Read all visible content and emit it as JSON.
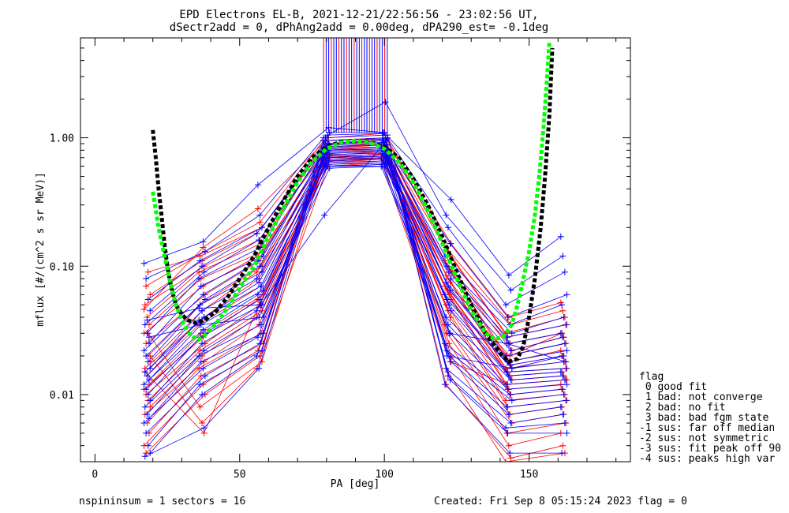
{
  "title": {
    "line1": "EPD Electrons EL-B, 2021-12-21/22:56:56 - 23:02:56 UT,",
    "line2": "dSectr2add = 0, dPhAng2add = 0.00deg, dPA290_est=  -0.1deg"
  },
  "footer": {
    "left": "nspininsum =  1  sectors = 16",
    "right": "Created: Fri Sep  8 05:15:24 2023   flag = 0"
  },
  "legend": {
    "title": "flag",
    "items": [
      " 0 good fit",
      " 1 bad: not converge",
      " 2 bad: no fit",
      " 3 bad: bad fgm state",
      "-1 sus: far off median",
      "-2 sus: not symmetric",
      "-3 sus: fit peak off 90",
      "-4 sus: peaks high var"
    ]
  },
  "chart_data": {
    "type": "line",
    "xlabel": "PA [deg]",
    "ylabel": "mflux [#/(cm^2 s sr MeV)]",
    "xlim": [
      -5,
      185
    ],
    "ylim": [
      0.003,
      6.0
    ],
    "yscale": "log",
    "xticks": [
      0,
      50,
      100,
      150
    ],
    "xtick_labels": [
      "0",
      "50",
      "100",
      "150"
    ],
    "yticks": [
      0.01,
      0.1,
      1.0
    ],
    "ytick_labels": [
      "0.01",
      "0.10",
      "1.00"
    ],
    "grid": false,
    "colors": {
      "red": "#ff0000",
      "blue": "#0000ff",
      "green": "#00ff00",
      "black": "#000000"
    },
    "pa_bins": [
      18,
      37,
      57,
      80,
      100,
      122,
      143,
      162
    ],
    "red_spectra": [
      [
        0.046,
        0.14,
        0.28,
        1.0,
        1.08,
        0.15,
        0.04,
        0.052
      ],
      [
        0.07,
        0.13,
        0.22,
        0.95,
        1.0,
        0.14,
        0.035,
        0.045
      ],
      [
        0.09,
        0.12,
        0.2,
        0.9,
        0.98,
        0.13,
        0.03,
        0.04
      ],
      [
        0.06,
        0.11,
        0.18,
        0.88,
        0.95,
        0.12,
        0.028,
        0.035
      ],
      [
        0.05,
        0.1,
        0.16,
        0.85,
        0.9,
        0.11,
        0.025,
        0.03
      ],
      [
        0.04,
        0.09,
        0.15,
        0.83,
        0.88,
        0.1,
        0.022,
        0.028
      ],
      [
        0.035,
        0.08,
        0.13,
        0.8,
        0.85,
        0.095,
        0.02,
        0.025
      ],
      [
        0.03,
        0.07,
        0.12,
        0.78,
        0.82,
        0.09,
        0.018,
        0.022
      ],
      [
        0.025,
        0.06,
        0.11,
        0.75,
        0.8,
        0.085,
        0.017,
        0.02
      ],
      [
        0.02,
        0.05,
        0.1,
        0.73,
        0.78,
        0.08,
        0.016,
        0.018
      ],
      [
        0.018,
        0.045,
        0.09,
        0.7,
        0.75,
        0.075,
        0.015,
        0.016
      ],
      [
        0.016,
        0.04,
        0.08,
        0.68,
        0.72,
        0.07,
        0.014,
        0.015
      ],
      [
        0.014,
        0.035,
        0.07,
        0.66,
        0.7,
        0.065,
        0.013,
        0.014
      ],
      [
        0.012,
        0.03,
        0.06,
        0.64,
        0.68,
        0.06,
        0.012,
        0.013
      ],
      [
        0.011,
        0.028,
        0.055,
        0.62,
        0.66,
        0.055,
        0.011,
        0.012
      ],
      [
        0.01,
        0.025,
        0.05,
        0.6,
        0.64,
        0.05,
        0.01,
        0.011
      ],
      [
        0.009,
        0.022,
        0.045,
        0.65,
        0.7,
        0.045,
        0.009,
        0.01
      ],
      [
        0.008,
        0.02,
        0.04,
        0.7,
        0.75,
        0.04,
        0.008,
        0.009
      ],
      [
        0.007,
        0.018,
        0.035,
        0.75,
        0.8,
        0.035,
        0.007,
        0.008
      ],
      [
        0.006,
        0.016,
        0.03,
        0.8,
        0.85,
        0.03,
        0.006,
        0.007
      ],
      [
        0.005,
        0.014,
        0.025,
        0.85,
        0.9,
        0.025,
        0.005,
        0.006
      ],
      [
        0.004,
        0.012,
        0.022,
        0.9,
        0.95,
        0.02,
        0.004,
        0.005
      ],
      [
        0.0035,
        0.01,
        0.02,
        0.95,
        1.0,
        0.012,
        0.0032,
        0.004
      ],
      [
        0.03,
        0.008,
        0.018,
        0.7,
        0.72,
        0.015,
        0.003,
        0.0035
      ],
      [
        0.02,
        0.006,
        0.016,
        0.6,
        0.62,
        0.018,
        0.012,
        0.013
      ],
      [
        0.015,
        0.005,
        0.05,
        0.72,
        0.74,
        0.07,
        0.02,
        0.03
      ]
    ],
    "blue_spectra": [
      [
        0.105,
        0.155,
        0.43,
        1.2,
        1.1,
        0.33,
        0.085,
        0.17
      ],
      [
        0.08,
        0.13,
        0.25,
        1.0,
        1.9,
        0.25,
        0.065,
        0.12
      ],
      [
        0.055,
        0.11,
        0.2,
        0.95,
        1.0,
        0.2,
        0.05,
        0.09
      ],
      [
        0.045,
        0.1,
        0.18,
        0.9,
        0.95,
        0.15,
        0.04,
        0.06
      ],
      [
        0.035,
        0.09,
        0.16,
        0.88,
        0.9,
        0.12,
        0.035,
        0.05
      ],
      [
        0.03,
        0.08,
        0.14,
        0.85,
        0.88,
        0.1,
        0.03,
        0.04
      ],
      [
        0.025,
        0.07,
        0.12,
        0.82,
        0.85,
        0.09,
        0.028,
        0.035
      ],
      [
        0.022,
        0.06,
        0.11,
        0.8,
        0.82,
        0.08,
        0.025,
        0.03
      ],
      [
        0.02,
        0.055,
        0.1,
        0.78,
        0.8,
        0.075,
        0.022,
        0.028
      ],
      [
        0.018,
        0.05,
        0.09,
        0.76,
        0.78,
        0.07,
        0.02,
        0.025
      ],
      [
        0.016,
        0.045,
        0.08,
        0.74,
        0.76,
        0.065,
        0.018,
        0.022
      ],
      [
        0.015,
        0.04,
        0.075,
        0.72,
        0.74,
        0.06,
        0.017,
        0.02
      ],
      [
        0.014,
        0.038,
        0.07,
        0.7,
        0.72,
        0.055,
        0.016,
        0.018
      ],
      [
        0.013,
        0.035,
        0.065,
        0.68,
        0.7,
        0.05,
        0.015,
        0.016
      ],
      [
        0.012,
        0.032,
        0.06,
        0.66,
        0.68,
        0.045,
        0.014,
        0.015
      ],
      [
        0.011,
        0.03,
        0.055,
        0.64,
        0.66,
        0.04,
        0.013,
        0.014
      ],
      [
        0.01,
        0.028,
        0.05,
        0.62,
        0.64,
        0.035,
        0.012,
        0.013
      ],
      [
        0.009,
        0.025,
        0.045,
        0.6,
        0.62,
        0.03,
        0.011,
        0.012
      ],
      [
        0.008,
        0.022,
        0.04,
        0.58,
        0.6,
        0.025,
        0.01,
        0.011
      ],
      [
        0.007,
        0.02,
        0.035,
        0.7,
        0.72,
        0.022,
        0.009,
        0.01
      ],
      [
        0.0065,
        0.018,
        0.03,
        0.8,
        0.82,
        0.02,
        0.008,
        0.009
      ],
      [
        0.006,
        0.016,
        0.028,
        0.9,
        0.92,
        0.018,
        0.007,
        0.008
      ],
      [
        0.005,
        0.014,
        0.025,
        0.95,
        0.98,
        0.016,
        0.006,
        0.007
      ],
      [
        0.004,
        0.012,
        0.022,
        1.0,
        1.05,
        0.014,
        0.0055,
        0.006
      ],
      [
        0.0035,
        0.01,
        0.02,
        1.05,
        1.08,
        0.013,
        0.005,
        0.005
      ],
      [
        0.0033,
        0.0055,
        0.016,
        1.1,
        1.1,
        0.012,
        0.0035,
        0.0035
      ],
      [
        0.038,
        0.047,
        0.05,
        0.25,
        0.95,
        0.02,
        0.016,
        0.02
      ],
      [
        0.028,
        0.035,
        0.04,
        0.6,
        0.6,
        0.03,
        0.025,
        0.018
      ]
    ],
    "spike_lines": {
      "x_range": [
        79,
        101
      ],
      "y_bottom": 1.1,
      "y_top": 6.0,
      "count": 26
    },
    "fit_curves": [
      {
        "color": "black",
        "points": [
          [
            20,
            1.15
          ],
          [
            21,
            0.7
          ],
          [
            22,
            0.4
          ],
          [
            23,
            0.25
          ],
          [
            24,
            0.15
          ],
          [
            25,
            0.1
          ],
          [
            26,
            0.075
          ],
          [
            27,
            0.06
          ],
          [
            28,
            0.05
          ],
          [
            30,
            0.042
          ],
          [
            32,
            0.038
          ],
          [
            35,
            0.036
          ],
          [
            38,
            0.038
          ],
          [
            42,
            0.045
          ],
          [
            46,
            0.058
          ],
          [
            50,
            0.08
          ],
          [
            55,
            0.12
          ],
          [
            60,
            0.2
          ],
          [
            65,
            0.32
          ],
          [
            70,
            0.5
          ],
          [
            75,
            0.7
          ],
          [
            80,
            0.85
          ],
          [
            85,
            0.93
          ],
          [
            90,
            0.95
          ],
          [
            95,
            0.93
          ],
          [
            100,
            0.85
          ],
          [
            105,
            0.7
          ],
          [
            110,
            0.48
          ],
          [
            115,
            0.3
          ],
          [
            120,
            0.17
          ],
          [
            125,
            0.09
          ],
          [
            130,
            0.05
          ],
          [
            135,
            0.03
          ],
          [
            140,
            0.021
          ],
          [
            143,
            0.018
          ],
          [
            146,
            0.019
          ],
          [
            148,
            0.024
          ],
          [
            150,
            0.04
          ],
          [
            152,
            0.08
          ],
          [
            154,
            0.2
          ],
          [
            155.5,
            0.5
          ],
          [
            157,
            1.5
          ],
          [
            158,
            5.0
          ]
        ]
      },
      {
        "color": "green",
        "points": [
          [
            20,
            0.38
          ],
          [
            22,
            0.2
          ],
          [
            24,
            0.12
          ],
          [
            26,
            0.075
          ],
          [
            28,
            0.05
          ],
          [
            30,
            0.038
          ],
          [
            32,
            0.031
          ],
          [
            34,
            0.028
          ],
          [
            36,
            0.027
          ],
          [
            38,
            0.029
          ],
          [
            42,
            0.036
          ],
          [
            46,
            0.048
          ],
          [
            50,
            0.068
          ],
          [
            55,
            0.1
          ],
          [
            60,
            0.17
          ],
          [
            65,
            0.28
          ],
          [
            70,
            0.45
          ],
          [
            75,
            0.65
          ],
          [
            80,
            0.82
          ],
          [
            85,
            0.92
          ],
          [
            90,
            0.95
          ],
          [
            95,
            0.92
          ],
          [
            100,
            0.82
          ],
          [
            105,
            0.65
          ],
          [
            110,
            0.45
          ],
          [
            115,
            0.27
          ],
          [
            120,
            0.15
          ],
          [
            125,
            0.08
          ],
          [
            130,
            0.045
          ],
          [
            135,
            0.03
          ],
          [
            138,
            0.027
          ],
          [
            141,
            0.028
          ],
          [
            144,
            0.035
          ],
          [
            146,
            0.05
          ],
          [
            148,
            0.08
          ],
          [
            150,
            0.13
          ],
          [
            152,
            0.25
          ],
          [
            153.5,
            0.5
          ],
          [
            155,
            1.2
          ],
          [
            156,
            2.5
          ],
          [
            157,
            5.5
          ]
        ]
      }
    ]
  }
}
